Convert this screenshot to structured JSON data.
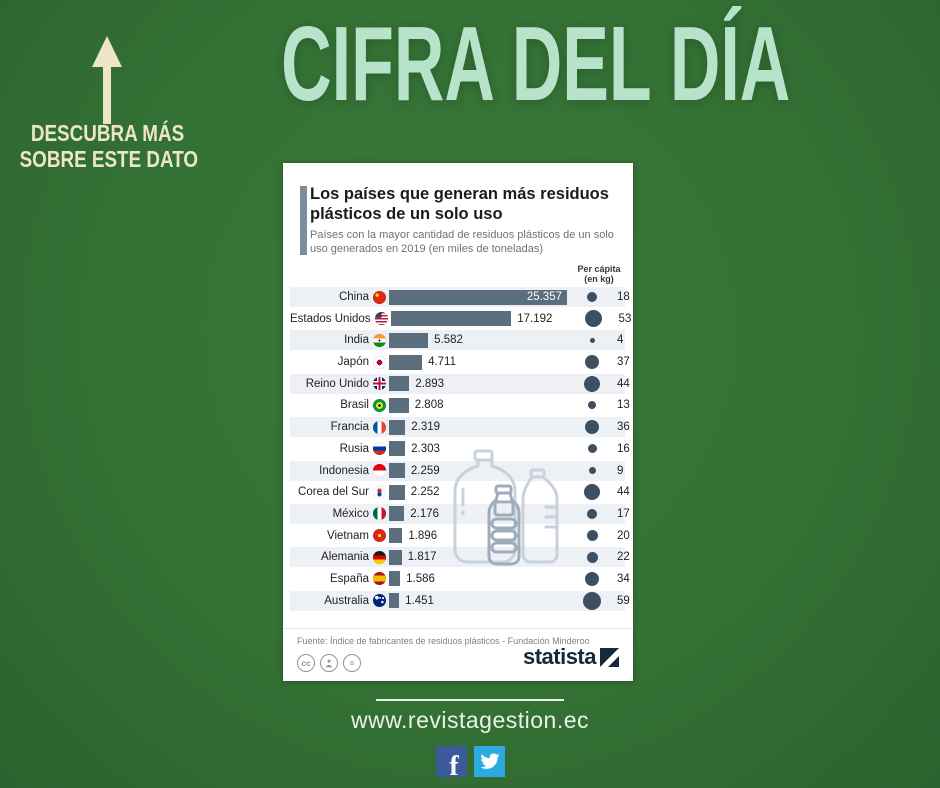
{
  "promo": {
    "caption_line1": "DESCUBRA MÁS",
    "caption_line2": "SOBRE ESTE DATO",
    "title": "CIFRA DEL DÍA"
  },
  "infographic": {
    "title": "Los países que generan más residuos plásticos de un solo uso",
    "subtitle": "Países con la mayor cantidad de residuos plásticos de un solo uso generados en 2019 (en miles de toneladas)",
    "per_capita_header_line1": "Per cápita",
    "per_capita_header_line2": "(en kg)",
    "source": "Fuente: Índice de fabricantes de residuos plásticos - Fundación Minderoo",
    "brand": "statista",
    "license": {
      "cc": "cc",
      "nd": "="
    }
  },
  "chart_data": {
    "type": "bar",
    "title": "Los países que generan más residuos plásticos de un solo uso",
    "subtitle": "Países con la mayor cantidad de residuos plásticos de un solo uso generados en 2019 (en miles de toneladas)",
    "unit": "miles de toneladas",
    "xlim": [
      0,
      25357
    ],
    "bar_color": "#5b6e7d",
    "dot_color": "#3d4f63",
    "rows": [
      {
        "country": "China",
        "flag": "cn",
        "value": 25357,
        "value_label": "25.357",
        "per_capita": 18
      },
      {
        "country": "Estados Unidos",
        "flag": "us",
        "value": 17192,
        "value_label": "17.192",
        "per_capita": 53
      },
      {
        "country": "India",
        "flag": "in",
        "value": 5582,
        "value_label": "5.582",
        "per_capita": 4
      },
      {
        "country": "Japón",
        "flag": "jp",
        "value": 4711,
        "value_label": "4.711",
        "per_capita": 37
      },
      {
        "country": "Reino Unido",
        "flag": "gb",
        "value": 2893,
        "value_label": "2.893",
        "per_capita": 44
      },
      {
        "country": "Brasil",
        "flag": "br",
        "value": 2808,
        "value_label": "2.808",
        "per_capita": 13
      },
      {
        "country": "Francia",
        "flag": "fr",
        "value": 2319,
        "value_label": "2.319",
        "per_capita": 36
      },
      {
        "country": "Rusia",
        "flag": "ru",
        "value": 2303,
        "value_label": "2.303",
        "per_capita": 16
      },
      {
        "country": "Indonesia",
        "flag": "id",
        "value": 2259,
        "value_label": "2.259",
        "per_capita": 9
      },
      {
        "country": "Corea del Sur",
        "flag": "kr",
        "value": 2252,
        "value_label": "2.252",
        "per_capita": 44
      },
      {
        "country": "México",
        "flag": "mx",
        "value": 2176,
        "value_label": "2.176",
        "per_capita": 17
      },
      {
        "country": "Vietnam",
        "flag": "vn",
        "value": 1896,
        "value_label": "1.896",
        "per_capita": 20
      },
      {
        "country": "Alemania",
        "flag": "de",
        "value": 1817,
        "value_label": "1.817",
        "per_capita": 22
      },
      {
        "country": "España",
        "flag": "es",
        "value": 1586,
        "value_label": "1.586",
        "per_capita": 34
      },
      {
        "country": "Australia",
        "flag": "au",
        "value": 1451,
        "value_label": "1.451",
        "per_capita": 59
      }
    ]
  },
  "footer": {
    "website": "www.revistagestion.ec",
    "social": [
      {
        "name": "facebook",
        "color": "#3c5a99"
      },
      {
        "name": "twitter",
        "color": "#2caae1"
      }
    ]
  },
  "colors": {
    "background_green": "#347134",
    "title_mint": "#b7e3cb",
    "cream": "#ece5c8",
    "bar": "#5b6e7d",
    "dot": "#3d4f63"
  }
}
